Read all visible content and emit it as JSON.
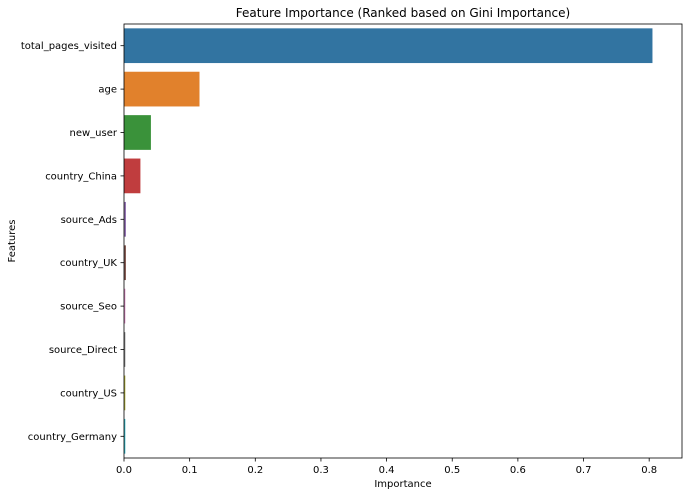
{
  "chart_data": {
    "type": "bar",
    "orientation": "horizontal",
    "title": "Feature Importance (Ranked based on Gini Importance)",
    "xlabel": "Importance",
    "ylabel": "Features",
    "xlim": [
      0,
      0.85
    ],
    "xticks": [
      0,
      0.1,
      0.2,
      0.3,
      0.4,
      0.5,
      0.6,
      0.7,
      0.8
    ],
    "xtick_labels": [
      "0.0",
      "0.1",
      "0.2",
      "0.3",
      "0.4",
      "0.5",
      "0.6",
      "0.7",
      "0.8"
    ],
    "grid": false,
    "legend": "none",
    "categories": [
      "total_pages_visited",
      "age",
      "new_user",
      "country_China",
      "source_Ads",
      "country_UK",
      "source_Seo",
      "source_Direct",
      "country_US",
      "country_Germany"
    ],
    "values": [
      0.805,
      0.115,
      0.041,
      0.025,
      0.003,
      0.003,
      0.002,
      0.002,
      0.002,
      0.002
    ],
    "colors": [
      "#3274a1",
      "#e1812c",
      "#3a923a",
      "#c03d3e",
      "#9372b2",
      "#845b53",
      "#d684bd",
      "#7f7f7f",
      "#a9aa35",
      "#2eb4c5"
    ]
  }
}
